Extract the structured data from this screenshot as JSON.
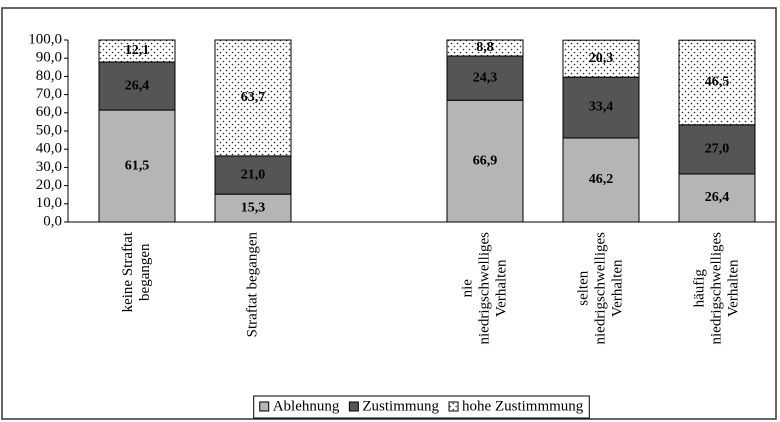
{
  "chart_data": {
    "type": "stacked-bar",
    "categories": [
      [
        "keine Straftat",
        "begangen"
      ],
      [
        "Straftat begangen"
      ],
      null,
      [
        "nie",
        "niedrigschwelliges",
        "Verhalten"
      ],
      [
        "selten",
        "niedrigschwelliges",
        "Verhalten"
      ],
      [
        "häufig",
        "niedrigschwelliges",
        "Verhalten"
      ]
    ],
    "series": [
      {
        "name": "Ablehnung",
        "color": "#b5b5b5",
        "values": [
          61.5,
          15.3,
          null,
          66.9,
          46.2,
          26.4
        ],
        "value_labels": [
          "61,5",
          "15,3",
          null,
          "66,9",
          "46,2",
          "26,4"
        ]
      },
      {
        "name": "Zustimmung",
        "color": "#555555",
        "values": [
          26.4,
          21.0,
          null,
          24.3,
          33.4,
          27.0
        ],
        "value_labels": [
          "26,4",
          "21,0",
          null,
          "24,3",
          "33,4",
          "27,0"
        ]
      },
      {
        "name": "hohe Zustimmmung",
        "color": "#ffffff",
        "pattern": "dots",
        "values": [
          12.1,
          63.7,
          null,
          8.8,
          20.3,
          46.5
        ],
        "value_labels": [
          "12,1",
          "63,7",
          null,
          "8,8",
          "20,3",
          "46,5"
        ]
      }
    ],
    "ylim": [
      0,
      100
    ],
    "yticks": [
      {
        "value": 0,
        "label": "0,0"
      },
      {
        "value": 10,
        "label": "10,0"
      },
      {
        "value": 20,
        "label": "20,0"
      },
      {
        "value": 30,
        "label": "30,0"
      },
      {
        "value": 40,
        "label": "40,0"
      },
      {
        "value": 50,
        "label": "50,0"
      },
      {
        "value": 60,
        "label": "60,0"
      },
      {
        "value": 70,
        "label": "70,0"
      },
      {
        "value": 80,
        "label": "80,0"
      },
      {
        "value": 90,
        "label": "90,0"
      },
      {
        "value": 100,
        "label": "100,0"
      }
    ],
    "legend": "bottom"
  }
}
